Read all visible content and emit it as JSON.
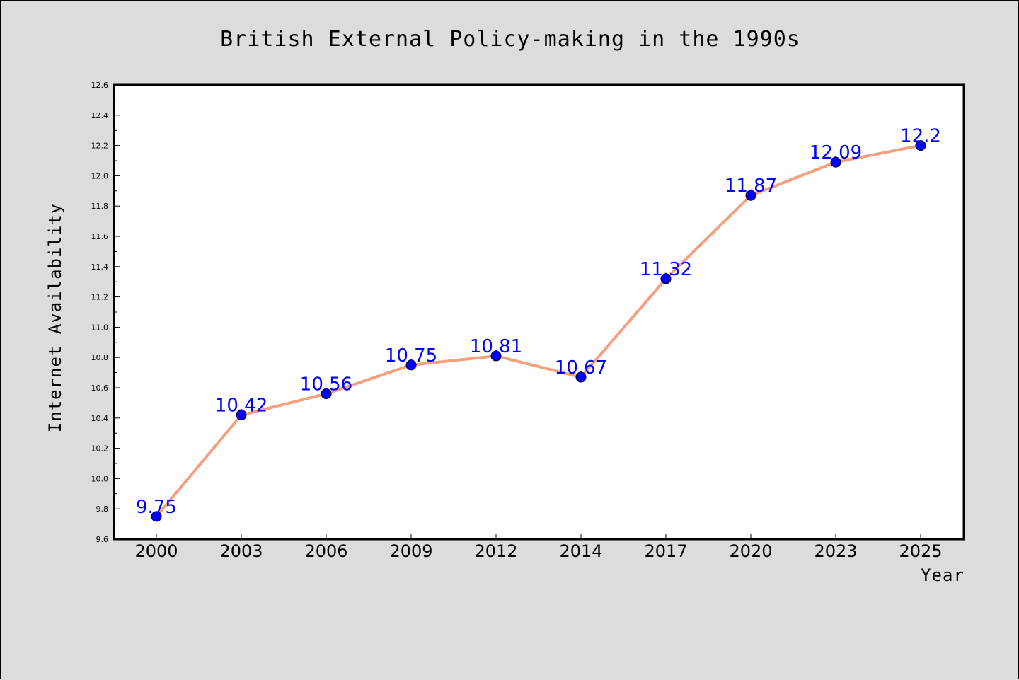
{
  "chart_data": {
    "type": "line",
    "title": "British External Policy-making in the 1990s",
    "xlabel": "Year",
    "ylabel": "Internet Availability",
    "categories": [
      "2000",
      "2003",
      "2006",
      "2009",
      "2012",
      "2014",
      "2017",
      "2020",
      "2023",
      "2025"
    ],
    "series": [
      {
        "values": [
          9.75,
          10.42,
          10.56,
          10.75,
          10.81,
          10.67,
          11.32,
          11.87,
          12.09,
          12.2
        ],
        "data_labels": [
          "9.75",
          "10.42",
          "10.56",
          "10.75",
          "10.81",
          "10.67",
          "11.32",
          "11.87",
          "12.09",
          "12.2"
        ]
      }
    ],
    "ylim": [
      9.6,
      12.6
    ],
    "yticks": [
      "9.6",
      "9.8",
      "10.0",
      "10.2",
      "10.4",
      "10.6",
      "10.8",
      "11.0",
      "11.2",
      "11.4",
      "11.6",
      "11.8",
      "12.0",
      "12.2",
      "12.4",
      "12.6"
    ],
    "grid": false,
    "colors": {
      "line": "#f4a07f",
      "marker": "#0000ff",
      "data_label": "#0000ff",
      "plot_background": "#ffffff",
      "figure_background": "#dcdcdc"
    }
  }
}
